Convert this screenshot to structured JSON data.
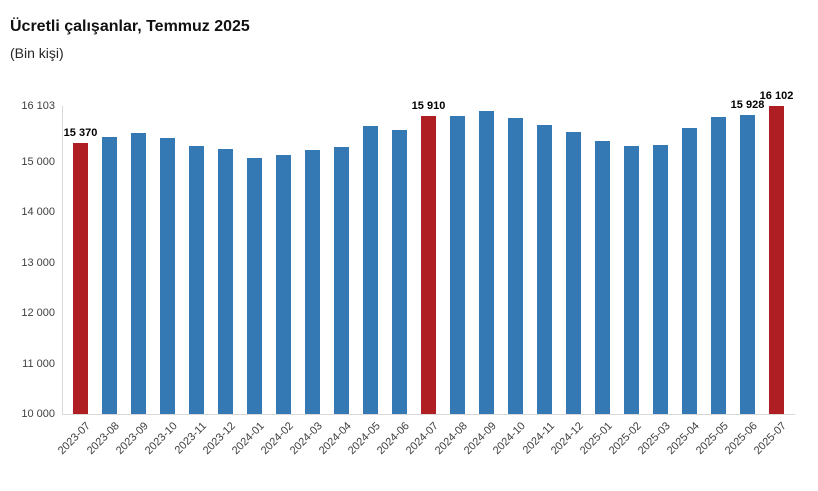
{
  "header": {
    "title": "Ücretli çalışanlar, Temmuz 2025",
    "subtitle": "(Bin kişi)"
  },
  "chart_data": {
    "type": "bar",
    "title": "Ücretli çalışanlar, Temmuz 2025",
    "subtitle": "(Bin kişi)",
    "xlabel": "",
    "ylabel": "",
    "ylim": [
      10000,
      16103
    ],
    "grid": false,
    "legend": false,
    "colors": {
      "bar_default": "#3579B4",
      "bar_highlight": "#AF1E23",
      "axis_line": "#d9d9d9"
    },
    "y_ticks": [
      {
        "value": 16103,
        "label": "16 103"
      },
      {
        "value": 15000,
        "label": "15 000"
      },
      {
        "value": 14000,
        "label": "14 000"
      },
      {
        "value": 13000,
        "label": "13 000"
      },
      {
        "value": 12000,
        "label": "12 000"
      },
      {
        "value": 11000,
        "label": "11 000"
      },
      {
        "value": 10000,
        "label": "10 000"
      }
    ],
    "points": [
      {
        "category": "2023-07",
        "value": 15370,
        "highlight": true,
        "data_label": "15 370"
      },
      {
        "category": "2023-08",
        "value": 15480,
        "highlight": false
      },
      {
        "category": "2023-09",
        "value": 15565,
        "highlight": false
      },
      {
        "category": "2023-10",
        "value": 15475,
        "highlight": false
      },
      {
        "category": "2023-11",
        "value": 15315,
        "highlight": false
      },
      {
        "category": "2023-12",
        "value": 15245,
        "highlight": false
      },
      {
        "category": "2024-01",
        "value": 15080,
        "highlight": false
      },
      {
        "category": "2024-02",
        "value": 15135,
        "highlight": false
      },
      {
        "category": "2024-03",
        "value": 15225,
        "highlight": false
      },
      {
        "category": "2024-04",
        "value": 15300,
        "highlight": false
      },
      {
        "category": "2024-05",
        "value": 15705,
        "highlight": false
      },
      {
        "category": "2024-06",
        "value": 15625,
        "highlight": false
      },
      {
        "category": "2024-07",
        "value": 15910,
        "highlight": true,
        "data_label": "15 910"
      },
      {
        "category": "2024-08",
        "value": 15905,
        "highlight": false
      },
      {
        "category": "2024-09",
        "value": 15995,
        "highlight": false
      },
      {
        "category": "2024-10",
        "value": 15860,
        "highlight": false
      },
      {
        "category": "2024-11",
        "value": 15730,
        "highlight": false
      },
      {
        "category": "2024-12",
        "value": 15585,
        "highlight": false
      },
      {
        "category": "2025-01",
        "value": 15400,
        "highlight": false
      },
      {
        "category": "2025-02",
        "value": 15315,
        "highlight": false
      },
      {
        "category": "2025-03",
        "value": 15330,
        "highlight": false
      },
      {
        "category": "2025-04",
        "value": 15660,
        "highlight": false
      },
      {
        "category": "2025-05",
        "value": 15880,
        "highlight": false
      },
      {
        "category": "2025-06",
        "value": 15928,
        "highlight": false,
        "data_label": "15 928"
      },
      {
        "category": "2025-07",
        "value": 16102,
        "highlight": true,
        "data_label": "16 102"
      }
    ]
  }
}
